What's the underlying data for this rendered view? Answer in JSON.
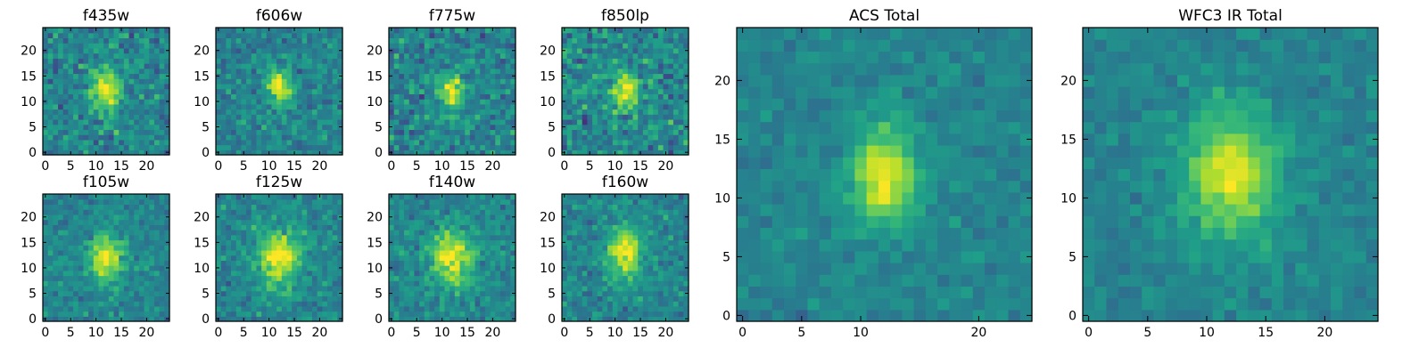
{
  "chart_data": [
    {
      "type": "heatmap",
      "title": "f435w",
      "grid_size": 25,
      "xticks": [
        0,
        5,
        10,
        15,
        20
      ],
      "yticks": [
        0,
        5,
        10,
        15,
        20
      ],
      "colormap": "viridis",
      "peak": [
        12,
        12
      ],
      "source_width": [
        1.8,
        2.6
      ],
      "noise": 0.55,
      "clutter": 0.1,
      "seed": 11
    },
    {
      "type": "heatmap",
      "title": "f606w",
      "grid_size": 25,
      "xticks": [
        0,
        5,
        10,
        15,
        20
      ],
      "yticks": [
        0,
        5,
        10,
        15,
        20
      ],
      "colormap": "viridis",
      "peak": [
        12,
        13
      ],
      "source_width": [
        1.4,
        2.4
      ],
      "noise": 0.45,
      "clutter": 0.05,
      "seed": 23
    },
    {
      "type": "heatmap",
      "title": "f775w",
      "grid_size": 25,
      "xticks": [
        0,
        5,
        10,
        15,
        20
      ],
      "yticks": [
        0,
        5,
        10,
        15,
        20
      ],
      "colormap": "viridis",
      "peak": [
        12,
        12
      ],
      "source_width": [
        1.6,
        2.6
      ],
      "noise": 0.55,
      "clutter": 0.1,
      "seed": 37
    },
    {
      "type": "heatmap",
      "title": "f850lp",
      "grid_size": 25,
      "xticks": [
        0,
        5,
        10,
        15,
        20
      ],
      "yticks": [
        0,
        5,
        10,
        15,
        20
      ],
      "colormap": "viridis",
      "peak": [
        12,
        12
      ],
      "source_width": [
        1.8,
        2.6
      ],
      "noise": 0.6,
      "clutter": 0.15,
      "seed": 41
    },
    {
      "type": "heatmap",
      "title": "f105w",
      "grid_size": 25,
      "xticks": [
        0,
        5,
        10,
        15,
        20
      ],
      "yticks": [
        0,
        5,
        10,
        15,
        20
      ],
      "colormap": "viridis",
      "peak": [
        12,
        12
      ],
      "source_width": [
        2.0,
        3.0
      ],
      "noise": 0.38,
      "clutter": 0.2,
      "seed": 53
    },
    {
      "type": "heatmap",
      "title": "f125w",
      "grid_size": 25,
      "xticks": [
        0,
        5,
        10,
        15,
        20
      ],
      "yticks": [
        0,
        5,
        10,
        15,
        20
      ],
      "colormap": "viridis",
      "peak": [
        12,
        12
      ],
      "source_width": [
        2.6,
        3.4
      ],
      "noise": 0.4,
      "clutter": 0.3,
      "seed": 67
    },
    {
      "type": "heatmap",
      "title": "f140w",
      "grid_size": 25,
      "xticks": [
        0,
        5,
        10,
        15,
        20
      ],
      "yticks": [
        0,
        5,
        10,
        15,
        20
      ],
      "colormap": "viridis",
      "peak": [
        12,
        12
      ],
      "source_width": [
        2.6,
        3.4
      ],
      "noise": 0.4,
      "clutter": 0.25,
      "seed": 71
    },
    {
      "type": "heatmap",
      "title": "f160w",
      "grid_size": 25,
      "xticks": [
        0,
        5,
        10,
        15,
        20
      ],
      "yticks": [
        0,
        5,
        10,
        15,
        20
      ],
      "colormap": "viridis",
      "peak": [
        12,
        13
      ],
      "source_width": [
        2.2,
        3.2
      ],
      "noise": 0.4,
      "clutter": 0.2,
      "seed": 83
    },
    {
      "type": "heatmap",
      "title": "ACS Total",
      "grid_size": 25,
      "xticks": [
        0,
        5,
        10,
        20
      ],
      "yticks": [
        0,
        5,
        10,
        15,
        20
      ],
      "colormap": "viridis",
      "peak": [
        12,
        12
      ],
      "source_width": [
        1.8,
        3.0
      ],
      "noise": 0.25,
      "clutter": 0.05,
      "seed": 97
    },
    {
      "type": "heatmap",
      "title": "WFC3 IR Total",
      "grid_size": 25,
      "xticks": [
        0,
        5,
        10,
        15,
        20
      ],
      "yticks": [
        0,
        5,
        10,
        15,
        20
      ],
      "colormap": "viridis",
      "peak": [
        12,
        12
      ],
      "source_width": [
        2.6,
        3.6
      ],
      "noise": 0.25,
      "clutter": 0.1,
      "seed": 101
    }
  ]
}
